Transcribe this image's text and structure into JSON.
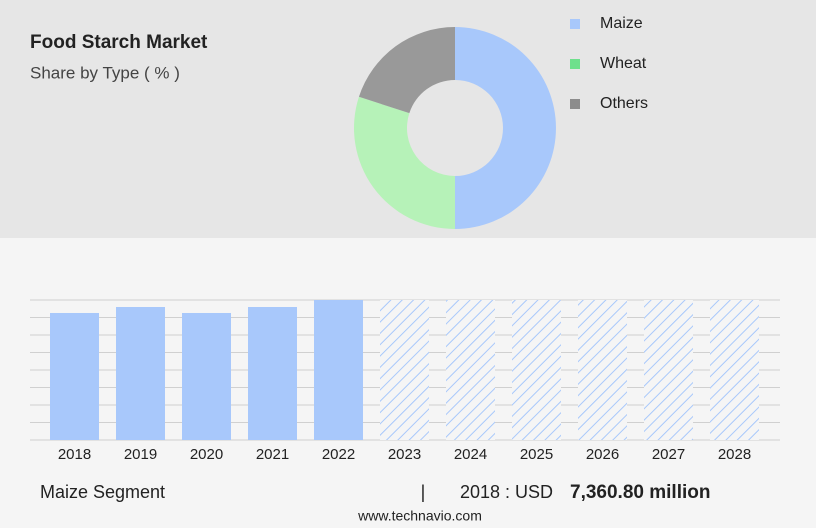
{
  "header": {
    "title": "Food Starch Market",
    "subtitle": "Share by Type ( % )"
  },
  "chart_data": [
    {
      "type": "donut",
      "categories": [
        "Maize",
        "Wheat",
        "Others"
      ],
      "values": [
        50,
        30,
        20
      ],
      "colors": [
        "#a8c8fb",
        "#b6f2b8",
        "#999999"
      ],
      "legend_colors": [
        "#a8c8fb",
        "#6ee08c",
        "#8c8c8c"
      ]
    },
    {
      "type": "bar",
      "categories": [
        "2018",
        "2019",
        "2020",
        "2021",
        "2022",
        "2023",
        "2024",
        "2025",
        "2026",
        "2027",
        "2028"
      ],
      "values": [
        7360.8,
        7708,
        7360.8,
        7708,
        8114,
        null,
        null,
        null,
        null,
        null,
        null
      ],
      "color": "#a8c8fb",
      "ylim": [
        0,
        8114
      ],
      "grid": true
    }
  ],
  "footer": {
    "segment": "Maize Segment",
    "separator": "|",
    "year_label": "2018 : USD",
    "value": "7,360.80 million",
    "source": "www.technavio.com"
  }
}
